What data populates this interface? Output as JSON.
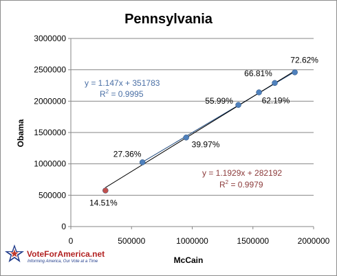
{
  "chart_data": {
    "type": "scatter",
    "title": "Pennsylvania",
    "xlabel": "McCain",
    "ylabel": "Obama",
    "xlim": [
      0,
      2000000
    ],
    "ylim": [
      0,
      3000000
    ],
    "x_ticks": [
      "0",
      "500000",
      "1000000",
      "1500000",
      "2000000"
    ],
    "y_ticks": [
      "0",
      "500000",
      "1000000",
      "1500000",
      "2000000",
      "2500000",
      "3000000"
    ],
    "grid": "horizontal",
    "points": [
      {
        "x": 285000,
        "y": 575000,
        "label": "14.51%",
        "color": "#c0504d"
      },
      {
        "x": 590000,
        "y": 1025000,
        "label": "27.36%",
        "color": "#4f81bd"
      },
      {
        "x": 950000,
        "y": 1420000,
        "label": "39.97%",
        "color": "#4f81bd"
      },
      {
        "x": 1380000,
        "y": 1940000,
        "label": "55.99%",
        "color": "#4f81bd"
      },
      {
        "x": 1550000,
        "y": 2140000,
        "label": "62.19%",
        "color": "#4f81bd"
      },
      {
        "x": 1680000,
        "y": 2290000,
        "label": "66.81%",
        "color": "#4f81bd"
      },
      {
        "x": 1845000,
        "y": 2460000,
        "label": "72.62%",
        "color": "#4f81bd"
      }
    ],
    "trendlines": [
      {
        "equation": "y = 1.147x + 351783",
        "r2_prefix": "R",
        "r2_sup": "2",
        "r2_value": " = 0.9995",
        "slope": 1.147,
        "intercept": 351783,
        "x_range": [
          590000,
          1845000
        ],
        "color": "#1f497d",
        "text_color": "#4a6fa5"
      },
      {
        "equation": "y = 1.1929x + 282192",
        "r2_prefix": "R",
        "r2_sup": "2",
        "r2_value": " = 0.9979",
        "slope": 1.1929,
        "intercept": 282192,
        "x_range": [
          285000,
          1845000
        ],
        "color": "#000000",
        "text_color": "#8b3a3a"
      }
    ]
  },
  "logo": {
    "brand": "VoteForAmerica.net",
    "tagline": "Informing America, Our Vote at a Time"
  }
}
